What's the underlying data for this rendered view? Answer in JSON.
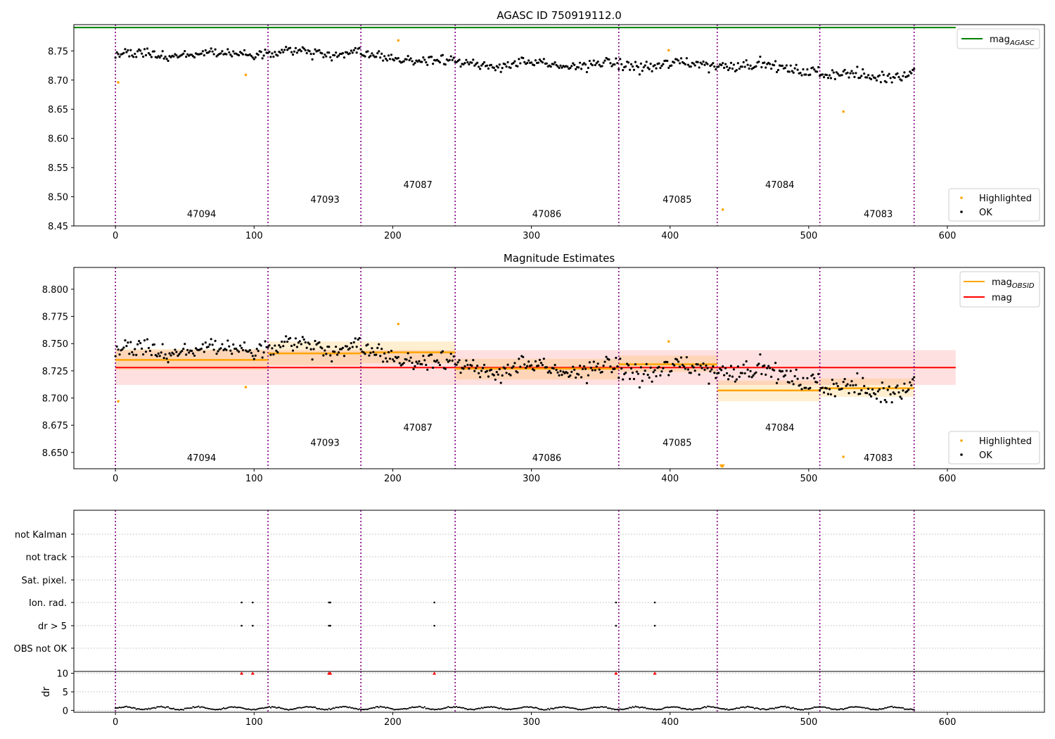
{
  "chart_data": [
    {
      "type": "scatter",
      "title": "AGASC ID 750919112.0",
      "xlabel": "",
      "ylabel": "",
      "xlim": [
        -30,
        670
      ],
      "ylim": [
        8.45,
        8.795
      ],
      "x_ticks": [
        0,
        100,
        200,
        300,
        400,
        500,
        600
      ],
      "y_ticks": [
        8.45,
        8.5,
        8.55,
        8.6,
        8.65,
        8.7,
        8.75
      ],
      "grid": false,
      "legend_placement": [
        "top-right",
        "bottom-right"
      ],
      "colors": {
        "ok": "#000000",
        "highlighted": "#ffa500",
        "mag_agasc": "#008000",
        "obsid_boundary": "#800080"
      },
      "mag_agasc": 8.79,
      "obsid_boundaries": [
        0,
        110,
        177,
        245,
        363,
        434,
        508,
        576
      ],
      "obsids": [
        {
          "label": "47094",
          "x": 54,
          "y": 8.465
        },
        {
          "label": "47093",
          "x": 143,
          "y": 8.49
        },
        {
          "label": "47087",
          "x": 210,
          "y": 8.515
        },
        {
          "label": "47086",
          "x": 303,
          "y": 8.465
        },
        {
          "label": "47085",
          "x": 397,
          "y": 8.49
        },
        {
          "label": "47084",
          "x": 471,
          "y": 8.515
        },
        {
          "label": "47083",
          "x": 542,
          "y": 8.465
        }
      ],
      "series": [
        {
          "name": "OK",
          "mean": [
            8.742,
            8.749,
            8.742,
            8.727,
            8.725,
            8.729,
            8.708,
            8.709
          ],
          "spread": [
            0.007,
            0.008,
            0.008,
            0.007,
            0.009,
            0.007,
            0.008,
            0.008
          ]
        },
        {
          "name": "Highlighted",
          "points": [
            [
              2,
              8.696
            ],
            [
              94,
              8.709
            ],
            [
              204,
              8.768
            ],
            [
              399,
              8.751
            ],
            [
              438,
              8.478
            ],
            [
              525,
              8.646
            ]
          ]
        },
        {
          "name": "magAGASC"
        }
      ],
      "legend": [
        {
          "kind": "line",
          "label": "mag",
          "subscript": "AGASC",
          "color": "#008000"
        },
        {
          "kind": "point",
          "label": "Highlighted",
          "color": "#ffa500"
        },
        {
          "kind": "point",
          "label": "OK",
          "color": "#000000"
        }
      ]
    },
    {
      "type": "scatter",
      "title": "Magnitude Estimates",
      "xlabel": "",
      "ylabel": "",
      "xlim": [
        -30,
        670
      ],
      "ylim": [
        8.635,
        8.82
      ],
      "x_ticks": [
        0,
        100,
        200,
        300,
        400,
        500,
        600
      ],
      "y_ticks": [
        8.65,
        8.675,
        8.7,
        8.725,
        8.75,
        8.775,
        8.8
      ],
      "grid": false,
      "mag": 8.728,
      "mag_band": [
        8.712,
        8.744
      ],
      "mag_x_range": [
        0,
        606
      ],
      "obsid_means": [
        {
          "x0": 0,
          "x1": 110,
          "mean": 8.735,
          "lo": 8.726,
          "hi": 8.745
        },
        {
          "x0": 110,
          "x1": 177,
          "mean": 8.741,
          "lo": 8.73,
          "hi": 8.752
        },
        {
          "x0": 177,
          "x1": 245,
          "mean": 8.742,
          "lo": 8.732,
          "hi": 8.752
        },
        {
          "x0": 245,
          "x1": 363,
          "mean": 8.727,
          "lo": 8.717,
          "hi": 8.736
        },
        {
          "x0": 363,
          "x1": 434,
          "mean": 8.731,
          "lo": 8.724,
          "hi": 8.739
        },
        {
          "x0": 434,
          "x1": 508,
          "mean": 8.707,
          "lo": 8.697,
          "hi": 8.716
        },
        {
          "x0": 508,
          "x1": 576,
          "mean": 8.709,
          "lo": 8.701,
          "hi": 8.718
        }
      ],
      "series": [
        {
          "name": "Highlighted",
          "points": [
            [
              2,
              8.697
            ],
            [
              94,
              8.71
            ],
            [
              204,
              8.768
            ],
            [
              399,
              8.752
            ],
            [
              525,
              8.646
            ]
          ]
        },
        {
          "name": "Highlighted (off-scale)",
          "points": [
            [
              437,
              8.637
            ],
            [
              438,
              8.637
            ]
          ]
        },
        {
          "name": "magOBSID"
        },
        {
          "name": "mag"
        }
      ],
      "legend": [
        {
          "kind": "line",
          "label": "mag",
          "subscript": "OBSID",
          "color": "#ffa500"
        },
        {
          "kind": "line",
          "label": "mag",
          "subscript": "",
          "color": "#ff0000"
        },
        {
          "kind": "point",
          "label": "Highlighted",
          "color": "#ffa500"
        },
        {
          "kind": "point",
          "label": "OK",
          "color": "#000000"
        }
      ]
    },
    {
      "type": "scatter",
      "title": "",
      "xlabel": "",
      "ylabel": "",
      "xlim": [
        -30,
        670
      ],
      "categories": [
        "not Kalman",
        "not track",
        "Sat. pixel.",
        "Ion. rad.",
        "dr > 5",
        "OBS not OK"
      ],
      "grid": true,
      "flag_x": {
        "Ion. rad.": [
          91,
          99,
          154,
          155,
          230,
          361,
          389
        ],
        "dr > 5": [
          91,
          99,
          154,
          155,
          230,
          361,
          389
        ]
      }
    },
    {
      "type": "scatter",
      "title": "",
      "xlabel": "",
      "ylabel": "dr",
      "xlim": [
        -30,
        670
      ],
      "ylim": [
        -0.5,
        10.5
      ],
      "x_ticks": [
        0,
        100,
        200,
        300,
        400,
        500,
        600
      ],
      "y_ticks": [
        0,
        5,
        10
      ],
      "clipped_x": [
        91,
        99,
        154,
        155,
        230,
        361,
        389
      ],
      "clip_value": 10,
      "dr_typical": 0.6
    }
  ]
}
